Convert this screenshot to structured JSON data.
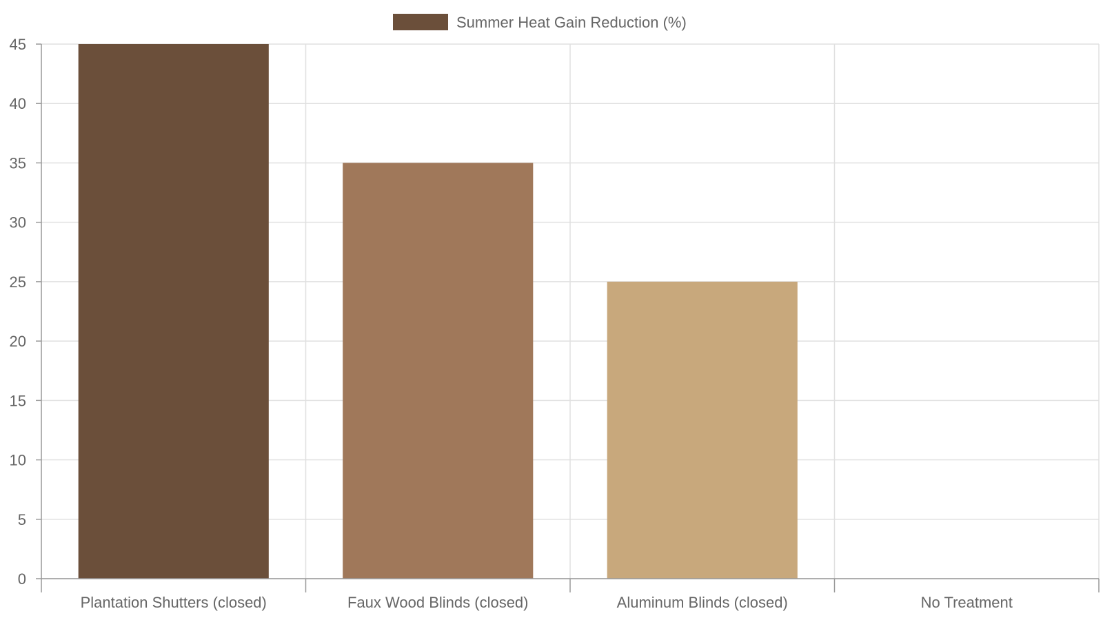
{
  "chart_data": {
    "type": "bar",
    "categories": [
      "Plantation Shutters (closed)",
      "Faux Wood Blinds (closed)",
      "Aluminum Blinds (closed)",
      "No Treatment"
    ],
    "series": [
      {
        "name": "Summer Heat Gain Reduction (%)",
        "values": [
          45,
          35,
          25,
          0
        ],
        "colors": [
          "#6b4f3a",
          "#a0785a",
          "#c8a87c",
          "#e8dcc8"
        ]
      }
    ],
    "title": "",
    "xlabel": "",
    "ylabel": "",
    "ylim": [
      0,
      45
    ],
    "yticks": [
      0,
      5,
      10,
      15,
      20,
      25,
      30,
      35,
      40,
      45
    ],
    "grid": true,
    "legend_position": "top-center",
    "legend_color": "#6b4f3a",
    "grid_color": "#e0e0e0",
    "axis_color": "#999999",
    "text_color": "#666666"
  }
}
